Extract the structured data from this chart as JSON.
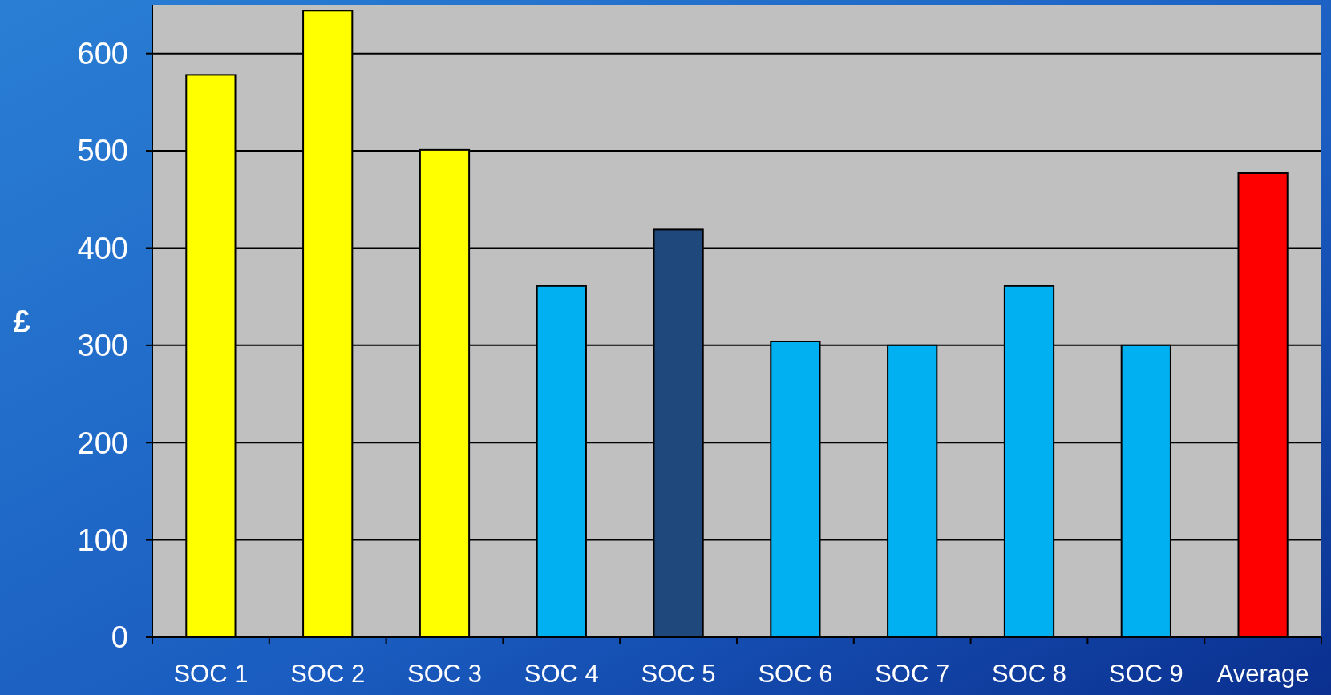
{
  "chart_data": {
    "type": "bar",
    "ylabel": "£",
    "categories": [
      "SOC 1",
      "SOC 2",
      "SOC 3",
      "SOC 4",
      "SOC 5",
      "SOC 6",
      "SOC 7",
      "SOC 8",
      "SOC 9",
      "Average"
    ],
    "values": [
      578,
      644,
      501,
      361,
      419,
      304,
      300,
      361,
      300,
      477
    ],
    "colors": [
      "#ffff00",
      "#ffff00",
      "#ffff00",
      "#00b0f0",
      "#1f497d",
      "#00b0f0",
      "#00b0f0",
      "#00b0f0",
      "#00b0f0",
      "#ff0000"
    ],
    "ylim": [
      0,
      650
    ],
    "yticks": [
      0,
      100,
      200,
      300,
      400,
      500,
      600
    ],
    "grid": "y"
  }
}
